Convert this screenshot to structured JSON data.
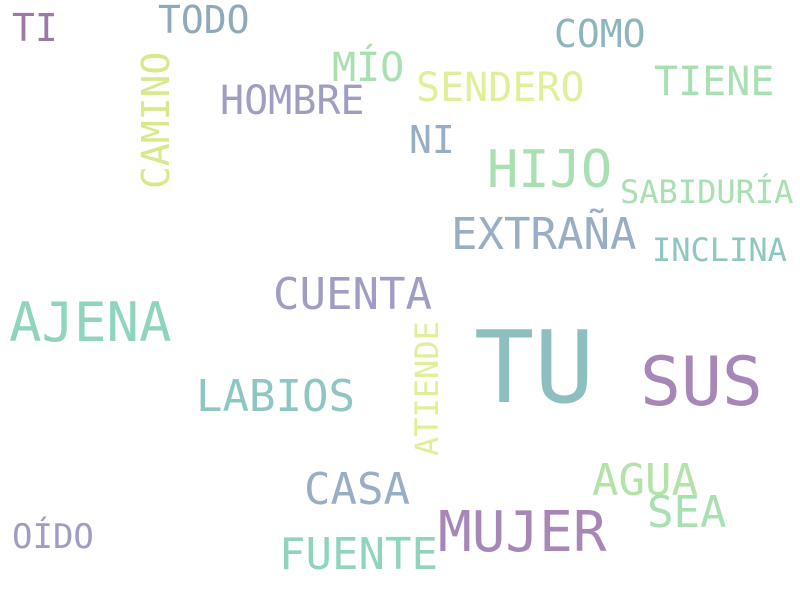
{
  "words": [
    {
      "text": "TI",
      "color": "#9b7aa6"
    },
    {
      "text": "TODO",
      "color": "#8eaab8"
    },
    {
      "text": "CAMINO",
      "color": "#d7e98a"
    },
    {
      "text": "MÍO",
      "color": "#a8e0b2"
    },
    {
      "text": "COMO",
      "color": "#8eb4bc"
    },
    {
      "text": "TIENE",
      "color": "#a8e0b2"
    },
    {
      "text": "HOMBRE",
      "color": "#9f9dc4"
    },
    {
      "text": "SENDERO",
      "color": "#e3ee98"
    },
    {
      "text": "NI",
      "color": "#98aec4"
    },
    {
      "text": "HIJO",
      "color": "#a8e0b2"
    },
    {
      "text": "SABIDURÍA",
      "color": "#a8e0b2"
    },
    {
      "text": "EXTRAÑA",
      "color": "#98aec4"
    },
    {
      "text": "INCLINA",
      "color": "#8ec7c2"
    },
    {
      "text": "AJENA",
      "color": "#8ed4be"
    },
    {
      "text": "CUENTA",
      "color": "#9f9dc4"
    },
    {
      "text": "ATIENDE",
      "color": "#e3ee98"
    },
    {
      "text": "TU",
      "color": "#8ebfc0"
    },
    {
      "text": "SUS",
      "color": "#a787b8"
    },
    {
      "text": "LABIOS",
      "color": "#8ec7c2"
    },
    {
      "text": "CASA",
      "color": "#98aec4"
    },
    {
      "text": "AGUA",
      "color": "#b4e3a8"
    },
    {
      "text": "SEA",
      "color": "#a8e0b2"
    },
    {
      "text": "MUJER",
      "color": "#a787b8"
    },
    {
      "text": "OÍDO",
      "color": "#9f9dc4"
    },
    {
      "text": "FUENTE",
      "color": "#8ed4be"
    }
  ]
}
